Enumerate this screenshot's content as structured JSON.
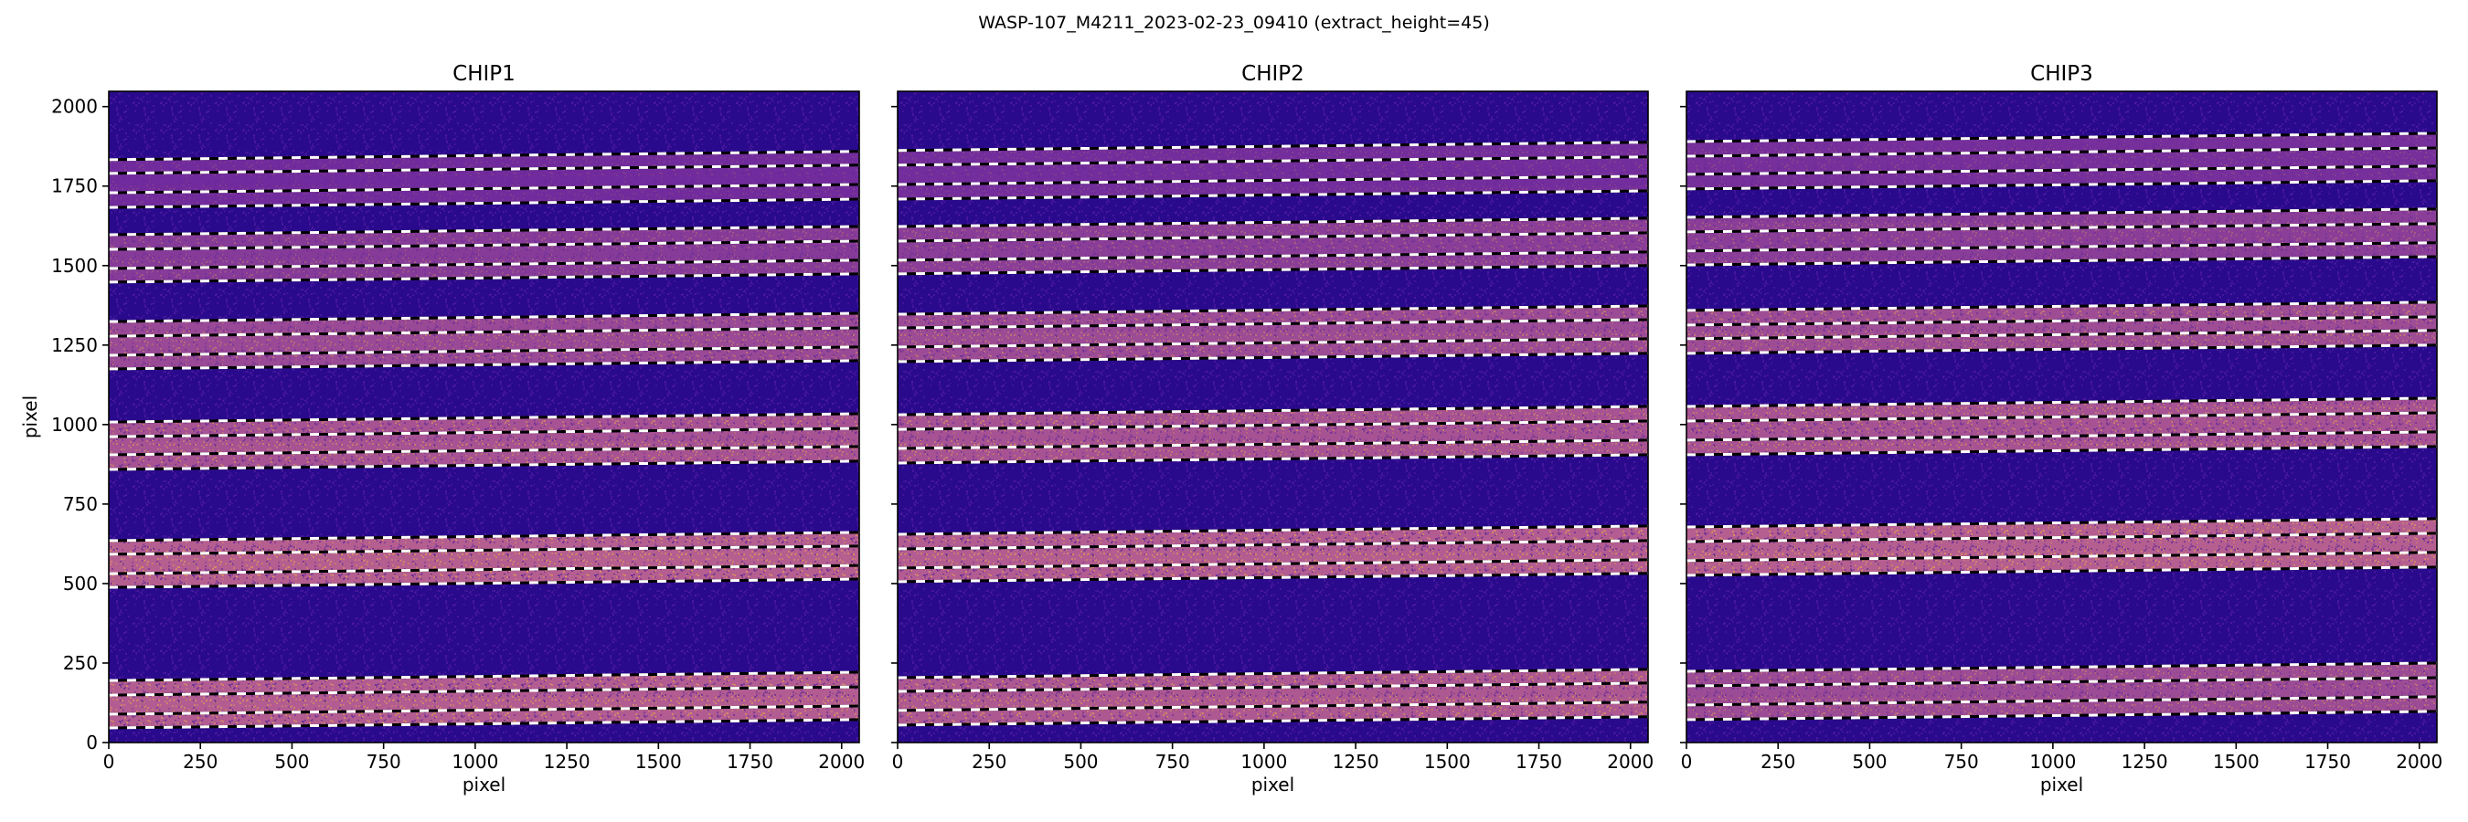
{
  "chart_data": {
    "type": "heatmap",
    "title": "WASP-107_M4211_2023-02-23_09410  (extract_height=45)",
    "colormap": "plasma",
    "shared_y": true,
    "xlim": [
      0,
      2048
    ],
    "ylim": [
      0,
      2048
    ],
    "xticks": [
      0,
      250,
      500,
      750,
      1000,
      1250,
      1500,
      1750,
      2000
    ],
    "yticks": [
      0,
      250,
      500,
      750,
      1000,
      1250,
      1500,
      1750,
      2000
    ],
    "xlabel": "pixel",
    "ylabel": "pixel",
    "trace_slope_over_x_range": 26,
    "panels": [
      {
        "title": "CHIP1",
        "orders": [
          {
            "edges_at_x0": [
              1833,
              1683
            ],
            "extract_at_x0": [
              1790,
              1729
            ],
            "intensity": 0.18
          },
          {
            "edges_at_x0": [
              1597,
              1448
            ],
            "extract_at_x0": [
              1551,
              1491
            ],
            "intensity": 0.35
          },
          {
            "edges_at_x0": [
              1324,
              1175
            ],
            "extract_at_x0": [
              1278,
              1218
            ],
            "intensity": 0.5
          },
          {
            "edges_at_x0": [
              1008,
              859
            ],
            "extract_at_x0": [
              962,
              905
            ],
            "intensity": 0.6
          },
          {
            "edges_at_x0": [
              635,
              488
            ],
            "extract_at_x0": [
              592,
              531
            ],
            "intensity": 0.72
          },
          {
            "edges_at_x0": [
              195,
              46
            ],
            "extract_at_x0": [
              149,
              89
            ],
            "intensity": 0.7
          }
        ]
      },
      {
        "title": "CHIP2",
        "orders": [
          {
            "edges_at_x0": [
              1862,
              1709
            ],
            "extract_at_x0": [
              1816,
              1755
            ],
            "intensity": 0.2
          },
          {
            "edges_at_x0": [
              1623,
              1474
            ],
            "extract_at_x0": [
              1577,
              1517
            ],
            "intensity": 0.38
          },
          {
            "edges_at_x0": [
              1347,
              1198
            ],
            "extract_at_x0": [
              1304,
              1244
            ],
            "intensity": 0.52
          },
          {
            "edges_at_x0": [
              1031,
              879
            ],
            "extract_at_x0": [
              985,
              925
            ],
            "intensity": 0.6
          },
          {
            "edges_at_x0": [
              655,
              506
            ],
            "extract_at_x0": [
              609,
              549
            ],
            "intensity": 0.7
          },
          {
            "edges_at_x0": [
              204,
              55
            ],
            "extract_at_x0": [
              161,
              101
            ],
            "intensity": 0.66
          }
        ]
      },
      {
        "title": "CHIP3",
        "orders": [
          {
            "edges_at_x0": [
              1890,
              1741
            ],
            "extract_at_x0": [
              1844,
              1787
            ],
            "intensity": 0.22
          },
          {
            "edges_at_x0": [
              1652,
              1502
            ],
            "extract_at_x0": [
              1606,
              1546
            ],
            "intensity": 0.38
          },
          {
            "edges_at_x0": [
              1359,
              1224
            ],
            "extract_at_x0": [
              1313,
              1270
            ],
            "intensity": 0.54
          },
          {
            "edges_at_x0": [
              1057,
              905
            ],
            "extract_at_x0": [
              1011,
              951
            ],
            "intensity": 0.6
          },
          {
            "edges_at_x0": [
              678,
              526
            ],
            "extract_at_x0": [
              632,
              572
            ],
            "intensity": 0.72
          },
          {
            "edges_at_x0": [
              224,
              72
            ],
            "extract_at_x0": [
              178,
              118
            ],
            "intensity": 0.52
          }
        ]
      }
    ]
  },
  "colors": {
    "background": "#2a0a8c",
    "band_low": "#5a1aa0",
    "band_high": "#d8788a",
    "fleck": "#f5b43c",
    "trace_white": "#ffffff",
    "trace_black": "#000000"
  }
}
